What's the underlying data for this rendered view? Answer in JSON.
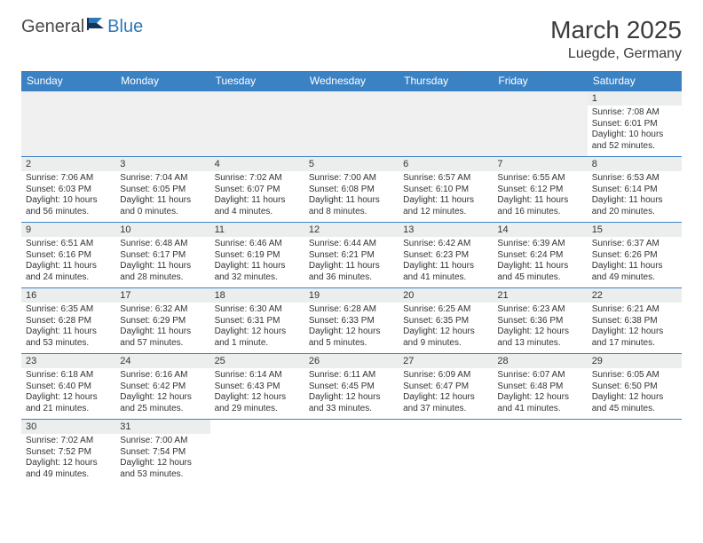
{
  "brand": {
    "text1": "General",
    "text2": "Blue"
  },
  "title": "March 2025",
  "location": "Luegde, Germany",
  "colors": {
    "header_bg": "#3b82c4",
    "header_text": "#ffffff",
    "border": "#3b82c4",
    "daynum_bg": "#eceeee",
    "text": "#333333",
    "empty_bg": "#f0f0f0",
    "brand_blue": "#2f78b7"
  },
  "weekdays": [
    "Sunday",
    "Monday",
    "Tuesday",
    "Wednesday",
    "Thursday",
    "Friday",
    "Saturday"
  ],
  "weeks": [
    [
      null,
      null,
      null,
      null,
      null,
      null,
      {
        "n": "1",
        "sr": "7:08 AM",
        "ss": "6:01 PM",
        "dl": "10 hours and 52 minutes."
      }
    ],
    [
      {
        "n": "2",
        "sr": "7:06 AM",
        "ss": "6:03 PM",
        "dl": "10 hours and 56 minutes."
      },
      {
        "n": "3",
        "sr": "7:04 AM",
        "ss": "6:05 PM",
        "dl": "11 hours and 0 minutes."
      },
      {
        "n": "4",
        "sr": "7:02 AM",
        "ss": "6:07 PM",
        "dl": "11 hours and 4 minutes."
      },
      {
        "n": "5",
        "sr": "7:00 AM",
        "ss": "6:08 PM",
        "dl": "11 hours and 8 minutes."
      },
      {
        "n": "6",
        "sr": "6:57 AM",
        "ss": "6:10 PM",
        "dl": "11 hours and 12 minutes."
      },
      {
        "n": "7",
        "sr": "6:55 AM",
        "ss": "6:12 PM",
        "dl": "11 hours and 16 minutes."
      },
      {
        "n": "8",
        "sr": "6:53 AM",
        "ss": "6:14 PM",
        "dl": "11 hours and 20 minutes."
      }
    ],
    [
      {
        "n": "9",
        "sr": "6:51 AM",
        "ss": "6:16 PM",
        "dl": "11 hours and 24 minutes."
      },
      {
        "n": "10",
        "sr": "6:48 AM",
        "ss": "6:17 PM",
        "dl": "11 hours and 28 minutes."
      },
      {
        "n": "11",
        "sr": "6:46 AM",
        "ss": "6:19 PM",
        "dl": "11 hours and 32 minutes."
      },
      {
        "n": "12",
        "sr": "6:44 AM",
        "ss": "6:21 PM",
        "dl": "11 hours and 36 minutes."
      },
      {
        "n": "13",
        "sr": "6:42 AM",
        "ss": "6:23 PM",
        "dl": "11 hours and 41 minutes."
      },
      {
        "n": "14",
        "sr": "6:39 AM",
        "ss": "6:24 PM",
        "dl": "11 hours and 45 minutes."
      },
      {
        "n": "15",
        "sr": "6:37 AM",
        "ss": "6:26 PM",
        "dl": "11 hours and 49 minutes."
      }
    ],
    [
      {
        "n": "16",
        "sr": "6:35 AM",
        "ss": "6:28 PM",
        "dl": "11 hours and 53 minutes."
      },
      {
        "n": "17",
        "sr": "6:32 AM",
        "ss": "6:29 PM",
        "dl": "11 hours and 57 minutes."
      },
      {
        "n": "18",
        "sr": "6:30 AM",
        "ss": "6:31 PM",
        "dl": "12 hours and 1 minute."
      },
      {
        "n": "19",
        "sr": "6:28 AM",
        "ss": "6:33 PM",
        "dl": "12 hours and 5 minutes."
      },
      {
        "n": "20",
        "sr": "6:25 AM",
        "ss": "6:35 PM",
        "dl": "12 hours and 9 minutes."
      },
      {
        "n": "21",
        "sr": "6:23 AM",
        "ss": "6:36 PM",
        "dl": "12 hours and 13 minutes."
      },
      {
        "n": "22",
        "sr": "6:21 AM",
        "ss": "6:38 PM",
        "dl": "12 hours and 17 minutes."
      }
    ],
    [
      {
        "n": "23",
        "sr": "6:18 AM",
        "ss": "6:40 PM",
        "dl": "12 hours and 21 minutes."
      },
      {
        "n": "24",
        "sr": "6:16 AM",
        "ss": "6:42 PM",
        "dl": "12 hours and 25 minutes."
      },
      {
        "n": "25",
        "sr": "6:14 AM",
        "ss": "6:43 PM",
        "dl": "12 hours and 29 minutes."
      },
      {
        "n": "26",
        "sr": "6:11 AM",
        "ss": "6:45 PM",
        "dl": "12 hours and 33 minutes."
      },
      {
        "n": "27",
        "sr": "6:09 AM",
        "ss": "6:47 PM",
        "dl": "12 hours and 37 minutes."
      },
      {
        "n": "28",
        "sr": "6:07 AM",
        "ss": "6:48 PM",
        "dl": "12 hours and 41 minutes."
      },
      {
        "n": "29",
        "sr": "6:05 AM",
        "ss": "6:50 PM",
        "dl": "12 hours and 45 minutes."
      }
    ],
    [
      {
        "n": "30",
        "sr": "7:02 AM",
        "ss": "7:52 PM",
        "dl": "12 hours and 49 minutes."
      },
      {
        "n": "31",
        "sr": "7:00 AM",
        "ss": "7:54 PM",
        "dl": "12 hours and 53 minutes."
      },
      null,
      null,
      null,
      null,
      null
    ]
  ],
  "labels": {
    "sunrise": "Sunrise: ",
    "sunset": "Sunset: ",
    "daylight": "Daylight: "
  }
}
